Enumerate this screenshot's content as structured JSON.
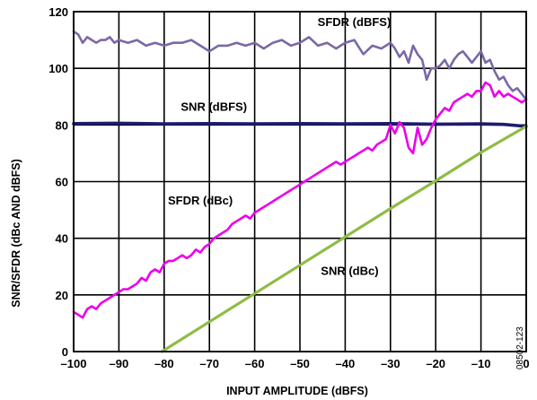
{
  "chart_data": {
    "type": "line",
    "xlabel": "INPUT AMPLITUDE (dBFS)",
    "ylabel": "SNR/SFDR (dBc AND dBFS)",
    "xlim": [
      -100,
      0
    ],
    "ylim": [
      0,
      120
    ],
    "x_ticks": [
      -100,
      -90,
      -80,
      -70,
      -60,
      -50,
      -40,
      -30,
      -20,
      -10,
      0
    ],
    "x_tick_labels": [
      "–100",
      "–90",
      "–80",
      "–70",
      "–60",
      "–50",
      "–40",
      "–30",
      "–20",
      "–10",
      "0"
    ],
    "y_ticks": [
      0,
      20,
      40,
      60,
      80,
      100,
      120
    ],
    "y_tick_labels": [
      "0",
      "20",
      "40",
      "60",
      "80",
      "100",
      "120"
    ],
    "grid": true,
    "figure_id": "08502-123",
    "series": [
      {
        "name": "SFDR (dBFS)",
        "color": "#7b68a6",
        "x": [
          -100,
          -99,
          -98,
          -97,
          -96,
          -95,
          -94,
          -93,
          -92,
          -91,
          -90,
          -88,
          -86,
          -84,
          -82,
          -80,
          -78,
          -76,
          -74,
          -72,
          -70,
          -68,
          -66,
          -64,
          -62,
          -60,
          -58,
          -56,
          -54,
          -52,
          -50,
          -48,
          -46,
          -44,
          -42,
          -40,
          -38,
          -36,
          -34,
          -32,
          -30,
          -29,
          -28,
          -27,
          -26,
          -25,
          -24,
          -23,
          -22,
          -21,
          -20,
          -19,
          -18,
          -17,
          -16,
          -15,
          -14,
          -13,
          -12,
          -11,
          -10,
          -9,
          -8,
          -7,
          -6,
          -5,
          -4,
          -3,
          -2,
          -1,
          0
        ],
        "y": [
          113,
          112,
          109,
          111,
          110,
          109,
          110,
          110,
          111,
          109,
          110,
          109,
          110,
          108,
          109,
          108,
          109,
          109,
          110,
          108,
          106,
          108,
          108,
          109,
          108,
          109,
          107,
          109,
          110,
          108,
          109,
          111,
          108,
          109,
          107,
          109,
          110,
          105,
          108,
          107,
          109,
          107,
          104,
          106,
          102,
          108,
          105,
          103,
          96,
          100,
          100,
          101,
          103,
          100,
          103,
          105,
          106,
          104,
          102,
          104,
          106,
          102,
          103,
          99,
          96,
          97,
          94,
          92,
          93,
          91,
          89
        ]
      },
      {
        "name": "SNR (dBFS)",
        "color": "#1c1c6e",
        "x": [
          -100,
          -90,
          -80,
          -70,
          -60,
          -50,
          -40,
          -30,
          -20,
          -10,
          -5,
          -2,
          0
        ],
        "y": [
          80.5,
          80.6,
          80.4,
          80.5,
          80.4,
          80.5,
          80.4,
          80.5,
          80.3,
          80.4,
          80.2,
          79.8,
          79.5
        ]
      },
      {
        "name": "SFDR (dBc)",
        "color": "#ec00ec",
        "x": [
          -100,
          -99,
          -98,
          -97,
          -96,
          -95,
          -94,
          -93,
          -92,
          -91,
          -90,
          -89,
          -88,
          -87,
          -86,
          -85,
          -84,
          -83,
          -82,
          -81,
          -80,
          -79,
          -78,
          -77,
          -76,
          -75,
          -74,
          -73,
          -72,
          -71,
          -70,
          -69,
          -68,
          -67,
          -66,
          -65,
          -64,
          -63,
          -62,
          -61,
          -60,
          -59,
          -58,
          -57,
          -56,
          -55,
          -54,
          -53,
          -52,
          -51,
          -50,
          -49,
          -48,
          -47,
          -46,
          -45,
          -44,
          -43,
          -42,
          -41,
          -40,
          -39,
          -38,
          -37,
          -36,
          -35,
          -34,
          -33,
          -32,
          -31,
          -30,
          -29,
          -28,
          -27,
          -26,
          -25,
          -24,
          -23,
          -22,
          -21,
          -20,
          -19,
          -18,
          -17,
          -16,
          -15,
          -14,
          -13,
          -12,
          -11,
          -10,
          -9,
          -8,
          -7,
          -6,
          -5,
          -4,
          -3,
          -2,
          -1,
          0
        ],
        "y": [
          14,
          13,
          12,
          15,
          16,
          15,
          17,
          18,
          19,
          20,
          21,
          22,
          22,
          23,
          24,
          26,
          25,
          28,
          29,
          28,
          31,
          32,
          32,
          33,
          34,
          33,
          34,
          36,
          35,
          37,
          38,
          40,
          41,
          42,
          43,
          45,
          46,
          47,
          48,
          47,
          49,
          50,
          51,
          52,
          53,
          54,
          55,
          56,
          57,
          58,
          59,
          60,
          61,
          62,
          63,
          64,
          65,
          66,
          67,
          66,
          67,
          68,
          69,
          70,
          71,
          72,
          71,
          73,
          74,
          75,
          80,
          77,
          81,
          79,
          72,
          70,
          79,
          73,
          75,
          79,
          82,
          84,
          86,
          85,
          88,
          89,
          90,
          91,
          90,
          92,
          92,
          95,
          94,
          90,
          92,
          90,
          91,
          90,
          89,
          88,
          89
        ]
      },
      {
        "name": "SNR (dBc)",
        "color": "#8fbc45",
        "x": [
          -80.5,
          -70,
          -60,
          -50,
          -40,
          -30,
          -20,
          -10,
          0
        ],
        "y": [
          0,
          10.5,
          20.5,
          30.5,
          40.5,
          50.5,
          60.3,
          70.3,
          79.5
        ]
      }
    ],
    "annotations": [
      {
        "text": "SFDR (dBFS)",
        "x": -38,
        "y": 115
      },
      {
        "text": "SNR (dBFS)",
        "x": -69,
        "y": 85
      },
      {
        "text": "SFDR (dBc)",
        "x": -72,
        "y": 52
      },
      {
        "text": "SNR (dBc)",
        "x": -39,
        "y": 27
      }
    ]
  }
}
